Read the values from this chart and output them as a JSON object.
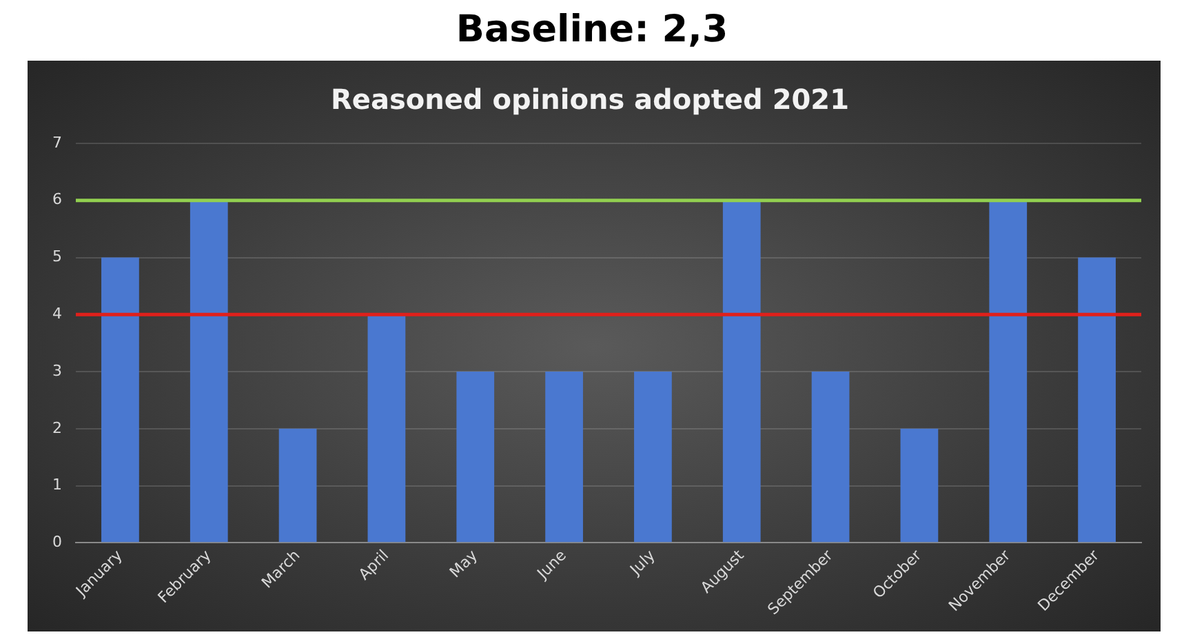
{
  "chart_data": {
    "type": "bar",
    "title": "Reasoned opinions adopted 2021",
    "annotations": [
      "Baseline: 2,3"
    ],
    "categories": [
      "January",
      "February",
      "March",
      "April",
      "May",
      "June",
      "July",
      "August",
      "September",
      "October",
      "November",
      "December"
    ],
    "values": [
      5,
      6,
      2,
      4,
      3,
      3,
      3,
      6,
      3,
      2,
      6,
      5
    ],
    "color": "#4a78d0",
    "ylim": [
      0,
      7
    ],
    "yticks": [
      0,
      1,
      2,
      3,
      4,
      5,
      6,
      7
    ],
    "grid": "y",
    "ref_lines": [
      {
        "axis": "y",
        "value": 6,
        "color": "#92d050"
      },
      {
        "axis": "y",
        "value": 4,
        "color": "#e0201b"
      }
    ]
  }
}
